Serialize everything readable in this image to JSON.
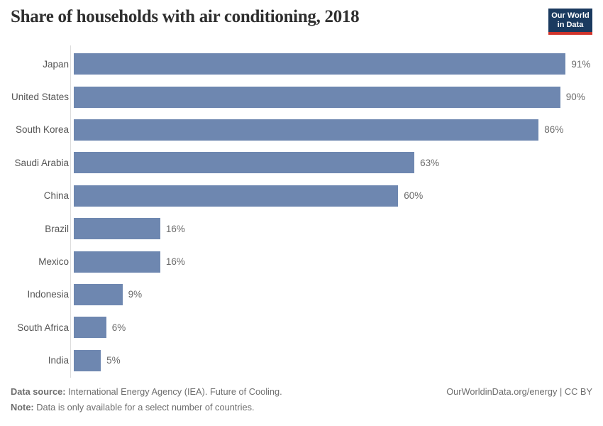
{
  "header": {
    "title": "Share of households with air conditioning, 2018",
    "logo": {
      "line1": "Our World",
      "line2": "in Data"
    }
  },
  "chart_data": {
    "type": "bar",
    "orientation": "horizontal",
    "title": "Share of households with air conditioning, 2018",
    "categories": [
      "Japan",
      "United States",
      "South Korea",
      "Saudi Arabia",
      "China",
      "Brazil",
      "Mexico",
      "Indonesia",
      "South Africa",
      "India"
    ],
    "values": [
      91,
      90,
      86,
      63,
      60,
      16,
      16,
      9,
      6,
      5
    ],
    "value_labels": [
      "91%",
      "90%",
      "86%",
      "63%",
      "60%",
      "16%",
      "16%",
      "9%",
      "6%",
      "5%"
    ],
    "unit": "%",
    "xlim": [
      0,
      100
    ],
    "grid": false,
    "legend": "none",
    "bar_color": "#6e87b0"
  },
  "footer": {
    "source_label": "Data source:",
    "source_text": " International Energy Agency (IEA). Future of Cooling.",
    "note_label": "Note:",
    "note_text": " Data is only available for a select number of countries.",
    "link_text": "OurWorldinData.org/energy | CC BY"
  },
  "colors": {
    "bar": "#6e87b0",
    "logo_navy": "#1a3a5f",
    "logo_red": "#d0342c",
    "title": "#2f2f2f",
    "label": "#555555",
    "value": "#6b6b6b",
    "footer": "#6e6e6e",
    "axis_line": "#dddddd"
  }
}
